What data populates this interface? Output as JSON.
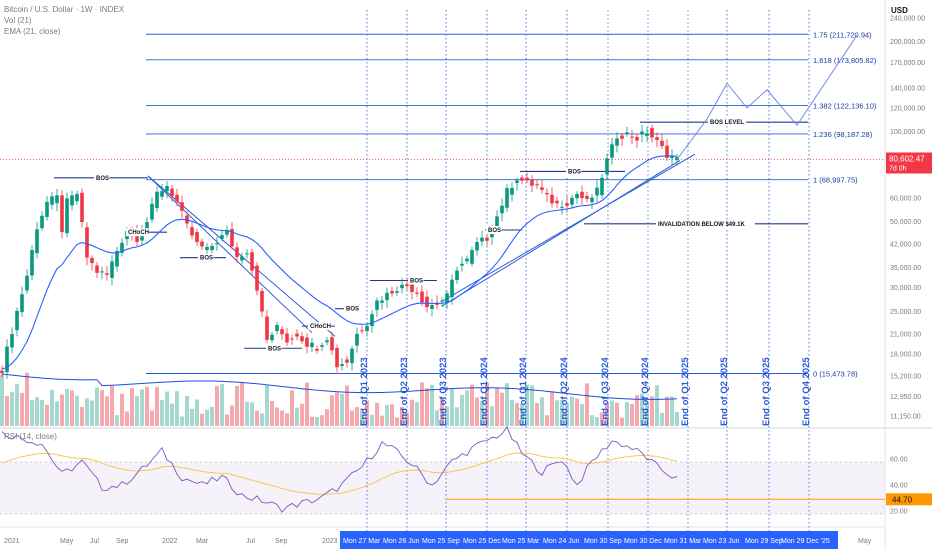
{
  "symbol_title": "Bitcoin / U.S. Dollar · 1W · INDEX",
  "indicators": [
    "Vol (21)",
    "EMA (21, close)"
  ],
  "rsi_label": "RSI (14, close)",
  "currency": "USD",
  "price_badge": {
    "price": "80,602.47",
    "countdown": "7d 0h",
    "color": "#f23645"
  },
  "rsi_badge": "44.70",
  "colors": {
    "up": "#089981",
    "down": "#f23645",
    "line": "#2a5bd7",
    "ema": "#2962ff",
    "rsi": "#7e57c2",
    "rsi_ma": "#f5c542",
    "level": "#ff9800"
  },
  "chart_data": {
    "type": "candlestick",
    "y_axis": {
      "scale": "log",
      "ticks": [
        "240,000.00",
        "200,000.00",
        "170,000.00",
        "140,000.00",
        "120,000.00",
        "100,000.00",
        "80,000.00",
        "60,000.00",
        "50,000.00",
        "42,000.00",
        "35,000.00",
        "30,000.00",
        "25,000.00",
        "21,000.00",
        "18,000.00",
        "15,200.00",
        "12,950.00",
        "11,150.00"
      ]
    },
    "rsi_axis_ticks": [
      "60.00",
      "40.00",
      "20.00"
    ],
    "x_axis": [
      "2021",
      "May",
      "Jul",
      "Sep",
      "2022",
      "Mar",
      "Jul",
      "Sep",
      "2023"
    ],
    "x_axis_future": [
      "May"
    ],
    "quarter_dates": [
      "Mon 27 Mar",
      "Mon 26 Jun",
      "Mon 25 Sep",
      "Mon 25 Dec",
      "Mon 25 Mar",
      "Mon 24 Jun",
      "Mon 30 Sep",
      "Mon 30 Dec",
      "Mon 31 Mar",
      "Mon 23 Jun",
      "Mon 29 Sep",
      "Mon 29 Dec '25"
    ],
    "quarter_labels": [
      "End of Q1 2023",
      "End of Q2 2023",
      "End of Q3 2023",
      "End of Q1 2024",
      "End of Q1 2024",
      "End of Q2 2024",
      "End of Q3 2024",
      "End of Q4 2024",
      "End of Q1 2025",
      "End of Q2 2025",
      "End of Q3 2025",
      "End of Q4 2025"
    ],
    "fib_levels": [
      {
        "label": "1.75 (211,720.94)",
        "value": 211720.94
      },
      {
        "label": "1.618 (173,805.82)",
        "value": 173805.82
      },
      {
        "label": "1.382 (122,136.10)",
        "value": 122136.1
      },
      {
        "label": "1.236 (98,187.28)",
        "value": 98187.28
      },
      {
        "label": "1 (68,997.75)",
        "value": 68997.75
      },
      {
        "label": "0 (15,473.78)",
        "value": 15473.78
      }
    ],
    "annotations": [
      "BOS",
      "CHoCH",
      "BOS",
      "BOS",
      "CHoCH",
      "BOS",
      "BOS",
      "BOS",
      "BOS",
      "BOS",
      "BOS LEVEL",
      "INVALIDATION BELOW $49.1K"
    ],
    "price_path": [
      [
        0,
        16000
      ],
      [
        3,
        25000
      ],
      [
        5,
        33000
      ],
      [
        7,
        48000
      ],
      [
        9,
        58000
      ],
      [
        11,
        60000
      ],
      [
        12,
        47000
      ],
      [
        13,
        58000
      ],
      [
        15,
        62000
      ],
      [
        17,
        38000
      ],
      [
        19,
        34000
      ],
      [
        21,
        33000
      ],
      [
        23,
        40000
      ],
      [
        25,
        47000
      ],
      [
        27,
        44000
      ],
      [
        29,
        50000
      ],
      [
        31,
        62000
      ],
      [
        33,
        66000
      ],
      [
        35,
        58000
      ],
      [
        37,
        48000
      ],
      [
        39,
        42000
      ],
      [
        41,
        40000
      ],
      [
        43,
        43000
      ],
      [
        45,
        46000
      ],
      [
        47,
        38000
      ],
      [
        49,
        40000
      ],
      [
        51,
        30000
      ],
      [
        53,
        20000
      ],
      [
        55,
        22000
      ],
      [
        57,
        20000
      ],
      [
        59,
        21000
      ],
      [
        61,
        19500
      ],
      [
        63,
        19000
      ],
      [
        65,
        20500
      ],
      [
        67,
        16500
      ],
      [
        69,
        17000
      ],
      [
        71,
        21000
      ],
      [
        73,
        23000
      ],
      [
        75,
        27000
      ],
      [
        77,
        28500
      ],
      [
        79,
        30000
      ],
      [
        81,
        30500
      ],
      [
        83,
        29000
      ],
      [
        85,
        26000
      ],
      [
        87,
        26500
      ],
      [
        89,
        28000
      ],
      [
        91,
        35000
      ],
      [
        93,
        37000
      ],
      [
        95,
        42000
      ],
      [
        97,
        44000
      ],
      [
        99,
        52000
      ],
      [
        101,
        63000
      ],
      [
        103,
        70000
      ],
      [
        105,
        67000
      ],
      [
        107,
        66000
      ],
      [
        109,
        60000
      ],
      [
        111,
        57000
      ],
      [
        113,
        58000
      ],
      [
        115,
        62000
      ],
      [
        117,
        58000
      ],
      [
        119,
        63000
      ],
      [
        121,
        80000
      ],
      [
        123,
        97000
      ],
      [
        125,
        98000
      ],
      [
        127,
        95000
      ],
      [
        129,
        100000
      ],
      [
        131,
        92000
      ],
      [
        133,
        84000
      ],
      [
        135,
        80602
      ]
    ],
    "projection_path": [
      [
        135,
        80602
      ],
      [
        141,
        110000
      ],
      [
        145,
        145000
      ],
      [
        149,
        120000
      ],
      [
        153,
        138000
      ],
      [
        159,
        105000
      ],
      [
        171,
        210000
      ]
    ],
    "rsi_path": [
      [
        0,
        80
      ],
      [
        4,
        76
      ],
      [
        8,
        72
      ],
      [
        12,
        48
      ],
      [
        16,
        58
      ],
      [
        20,
        38
      ],
      [
        24,
        40
      ],
      [
        28,
        52
      ],
      [
        32,
        66
      ],
      [
        36,
        46
      ],
      [
        40,
        40
      ],
      [
        44,
        46
      ],
      [
        48,
        32
      ],
      [
        52,
        28
      ],
      [
        56,
        22
      ],
      [
        60,
        26
      ],
      [
        64,
        30
      ],
      [
        68,
        40
      ],
      [
        72,
        54
      ],
      [
        76,
        72
      ],
      [
        78,
        68
      ],
      [
        82,
        56
      ],
      [
        86,
        40
      ],
      [
        90,
        58
      ],
      [
        94,
        68
      ],
      [
        98,
        76
      ],
      [
        101,
        82
      ],
      [
        104,
        64
      ],
      [
        108,
        50
      ],
      [
        112,
        60
      ],
      [
        115,
        40
      ],
      [
        118,
        58
      ],
      [
        122,
        74
      ],
      [
        125,
        70
      ],
      [
        128,
        64
      ],
      [
        131,
        54
      ],
      [
        135,
        44.7
      ]
    ]
  }
}
